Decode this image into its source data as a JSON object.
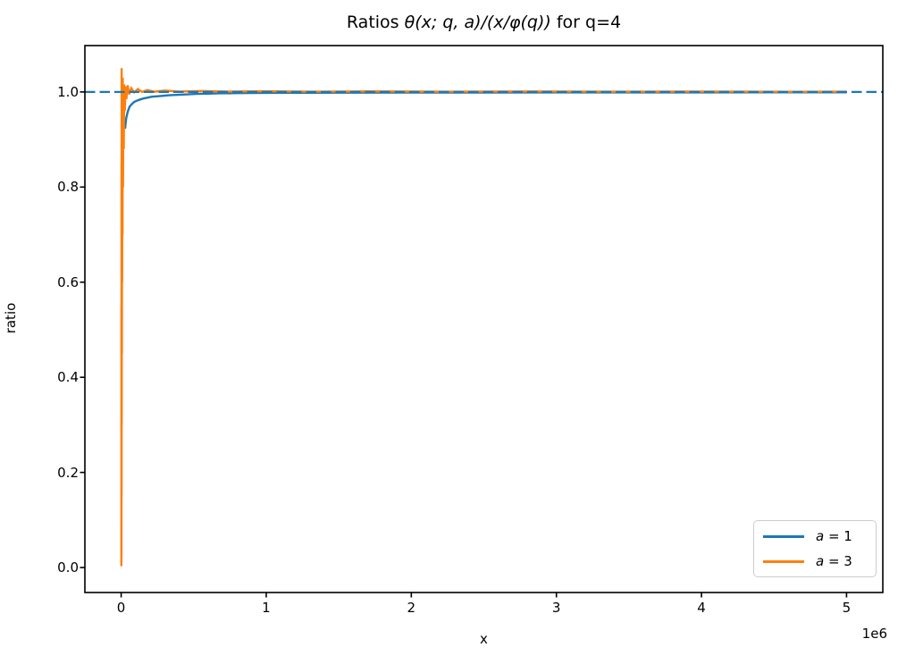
{
  "figure": {
    "title_prefix": "Ratios ",
    "title_math": "θ(x; q, a)/(x/φ(q))",
    "title_suffix": " for q=4",
    "xlabel": "x",
    "ylabel": "ratio",
    "offset_label": "1e6"
  },
  "legend": {
    "position": "lower right",
    "items": [
      {
        "label": "a = 1",
        "color": "#1f77b4"
      },
      {
        "label": "a = 3",
        "color": "#ff7f0e"
      }
    ]
  },
  "chart_data": {
    "type": "line",
    "title": "Ratios θ(x; q, a)/(x/φ(q)) for q=4",
    "xlabel": "x",
    "ylabel": "ratio",
    "xlim": [
      -250000,
      5250000
    ],
    "ylim": [
      -0.0525,
      1.0975
    ],
    "xticks": [
      0,
      1000000,
      2000000,
      3000000,
      4000000,
      5000000
    ],
    "xtick_labels": [
      "0",
      "1",
      "2",
      "3",
      "4",
      "5"
    ],
    "x_offset_label": "1e6",
    "yticks": [
      0.0,
      0.2,
      0.4,
      0.6,
      0.8,
      1.0
    ],
    "ytick_labels": [
      "0.0",
      "0.2",
      "0.4",
      "0.6",
      "0.8",
      "1.0"
    ],
    "grid": false,
    "legend_position": "lower right",
    "reference_line": {
      "y": 1.0,
      "style": "dashed",
      "color": "#1f77b4"
    },
    "series": [
      {
        "name": "a = 1",
        "color": "#1f77b4",
        "points": [
          [
            3000,
            1.0
          ],
          [
            5000,
            0.97
          ],
          [
            8000,
            1.005
          ],
          [
            12000,
            0.975
          ],
          [
            16000,
            0.945
          ],
          [
            20000,
            0.93
          ],
          [
            27000,
            0.923
          ],
          [
            35000,
            0.945
          ],
          [
            45000,
            0.958
          ],
          [
            58000,
            0.969
          ],
          [
            75000,
            0.975
          ],
          [
            90000,
            0.979
          ],
          [
            120000,
            0.983
          ],
          [
            150000,
            0.986
          ],
          [
            180000,
            0.988
          ],
          [
            212000,
            0.99
          ],
          [
            273000,
            0.9915
          ],
          [
            330000,
            0.993
          ],
          [
            396000,
            0.994
          ],
          [
            460000,
            0.995
          ],
          [
            519000,
            0.996
          ],
          [
            600000,
            0.9965
          ],
          [
            673000,
            0.997
          ],
          [
            800000,
            0.9975
          ],
          [
            1000000,
            0.998
          ],
          [
            1300000,
            0.9983
          ],
          [
            1600000,
            0.9985
          ],
          [
            2000000,
            0.9987
          ],
          [
            2500000,
            0.9988
          ],
          [
            3000000,
            0.999
          ],
          [
            3500000,
            0.999
          ],
          [
            4000000,
            0.9991
          ],
          [
            4500000,
            0.9992
          ],
          [
            5000000,
            0.9992
          ]
        ]
      },
      {
        "name": "a = 3",
        "color": "#ff7f0e",
        "points": [
          [
            1500,
            0.003
          ],
          [
            1800,
            0.55
          ],
          [
            2100,
            0.02
          ],
          [
            2500,
            0.85
          ],
          [
            2900,
            0.15
          ],
          [
            3400,
            1.05
          ],
          [
            3900,
            0.3
          ],
          [
            4500,
            0.98
          ],
          [
            5200,
            0.45
          ],
          [
            6000,
            1.02
          ],
          [
            7000,
            0.6
          ],
          [
            8200,
            0.99
          ],
          [
            9500,
            0.7
          ],
          [
            11000,
            1.03
          ],
          [
            13000,
            0.8
          ],
          [
            15000,
            1.01
          ],
          [
            18000,
            0.88
          ],
          [
            21000,
            1.016
          ],
          [
            25000,
            0.96
          ],
          [
            30000,
            1.012
          ],
          [
            36000,
            0.985
          ],
          [
            45000,
            1.014
          ],
          [
            55000,
            0.995
          ],
          [
            70000,
            1.008
          ],
          [
            90000,
            0.999
          ],
          [
            115000,
            1.006
          ],
          [
            145000,
            1.0
          ],
          [
            180000,
            1.004
          ],
          [
            230000,
            1.0005
          ],
          [
            300000,
            1.003
          ],
          [
            400000,
            1.0008
          ],
          [
            550000,
            1.002
          ],
          [
            750000,
            1.0008
          ],
          [
            1000000,
            1.0015
          ],
          [
            1300000,
            1.0006
          ],
          [
            1700000,
            1.0012
          ],
          [
            2200000,
            1.0005
          ],
          [
            2800000,
            1.001
          ],
          [
            3400000,
            1.0005
          ],
          [
            4000000,
            1.0008
          ],
          [
            4600000,
            1.0004
          ],
          [
            5000000,
            1.0006
          ]
        ]
      }
    ]
  }
}
